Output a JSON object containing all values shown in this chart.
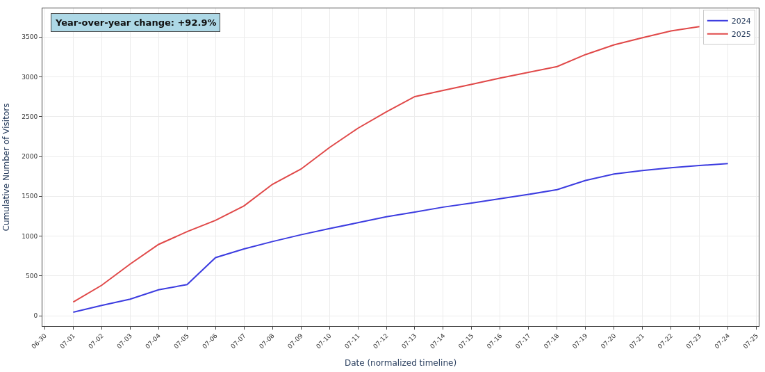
{
  "chart_data": {
    "type": "line",
    "xlabel": "Date (normalized timeline)",
    "ylabel": "Cumulative Number of Visitors",
    "annotations": [
      "Year-over-year change: +92.9%"
    ],
    "x": [
      "--07-01",
      "--07-02",
      "--07-03",
      "--07-04",
      "--07-05",
      "--07-06",
      "--07-07",
      "--07-08",
      "--07-09",
      "--07-10",
      "--07-11",
      "--07-12",
      "--07-13",
      "--07-14",
      "--07-15",
      "--07-16",
      "--07-17",
      "--07-18",
      "--07-19",
      "--07-20",
      "--07-21",
      "--07-22",
      "--07-23",
      "--07-24"
    ],
    "series": [
      {
        "name": "2024",
        "color": "#3c3ce0",
        "values": [
          45,
          130,
          208,
          326,
          392,
          730,
          839,
          932,
          1017,
          1095,
          1168,
          1243,
          1301,
          1364,
          1415,
          1470,
          1524,
          1584,
          1699,
          1780,
          1823,
          1859,
          1886,
          1910
        ]
      },
      {
        "name": "2025",
        "color": "#e04848",
        "values": [
          172,
          383,
          649,
          896,
          1056,
          1198,
          1379,
          1651,
          1841,
          2112,
          2354,
          2560,
          2752,
          2830,
          2906,
          2984,
          3057,
          3129,
          3280,
          3401,
          3491,
          3576,
          3630,
          null
        ]
      }
    ],
    "xlim": [
      "--06-29T22:00",
      "--07-25T02:00"
    ],
    "xticks": [
      {
        "value": "--06-30",
        "label": "06-30"
      },
      {
        "value": "--07-01",
        "label": "07-01"
      },
      {
        "value": "--07-02",
        "label": "07-02"
      },
      {
        "value": "--07-03",
        "label": "07-03"
      },
      {
        "value": "--07-04",
        "label": "07-04"
      },
      {
        "value": "--07-05",
        "label": "07-05"
      },
      {
        "value": "--07-06",
        "label": "07-06"
      },
      {
        "value": "--07-07",
        "label": "07-07"
      },
      {
        "value": "--07-08",
        "label": "07-08"
      },
      {
        "value": "--07-09",
        "label": "07-09"
      },
      {
        "value": "--07-10",
        "label": "07-10"
      },
      {
        "value": "--07-11",
        "label": "07-11"
      },
      {
        "value": "--07-12",
        "label": "07-12"
      },
      {
        "value": "--07-13",
        "label": "07-13"
      },
      {
        "value": "--07-14",
        "label": "07-14"
      },
      {
        "value": "--07-15",
        "label": "07-15"
      },
      {
        "value": "--07-16",
        "label": "07-16"
      },
      {
        "value": "--07-17",
        "label": "07-17"
      },
      {
        "value": "--07-18",
        "label": "07-18"
      },
      {
        "value": "--07-19",
        "label": "07-19"
      },
      {
        "value": "--07-20",
        "label": "07-20"
      },
      {
        "value": "--07-21",
        "label": "07-21"
      },
      {
        "value": "--07-22",
        "label": "07-22"
      },
      {
        "value": "--07-23",
        "label": "07-23"
      },
      {
        "value": "--07-24",
        "label": "07-24"
      },
      {
        "value": "--07-25",
        "label": "07-25"
      }
    ],
    "ylim": [
      -130,
      3860
    ],
    "yticks": [
      0,
      500,
      1000,
      1500,
      2000,
      2500,
      3000,
      3500
    ],
    "grid": true,
    "legend": "top right",
    "marker": "none",
    "line_style": "solid"
  }
}
